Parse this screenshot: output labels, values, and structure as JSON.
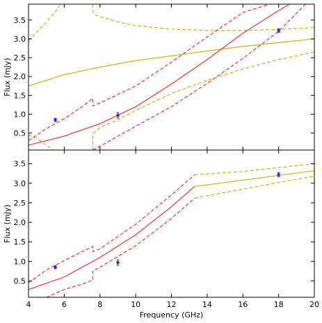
{
  "chart_data": {
    "type": "line",
    "xlabel": "Frequency (GHz)",
    "xlim": [
      4,
      20
    ],
    "xticks": [
      "4",
      "6",
      "8",
      "10",
      "12",
      "14",
      "16",
      "18",
      "20"
    ],
    "shared_x_axis": true,
    "grid": false,
    "legend": "none",
    "colors": {
      "model": "#ff2a2a",
      "model_alt": "#c8b400",
      "observed": "#1a2dff",
      "axes": "#000000"
    },
    "observations": [
      {
        "x": 5.5,
        "y": 0.85,
        "yerr": 0.04
      },
      {
        "x": 9.0,
        "y": 0.97,
        "yerr": 0.07
      },
      {
        "x": 18.0,
        "y": 3.22,
        "yerr": 0.05
      }
    ],
    "panels": [
      {
        "ylabel": "Flux (mJy)",
        "ylim": [
          0.05,
          3.92
        ],
        "yticks": [
          "0.5",
          "1.0",
          "1.5",
          "2.0",
          "2.5",
          "3.0",
          "3.5"
        ],
        "series": [
          {
            "color": "#c8b400",
            "style": "solid",
            "x": [
              4,
              6,
              8,
              10,
              12,
              14,
              16,
              18,
              20
            ],
            "y": [
              1.75,
              2.05,
              2.25,
              2.42,
              2.55,
              2.68,
              2.8,
              2.9,
              3.0
            ]
          },
          {
            "color": "#c8b400",
            "style": "dashed",
            "x": [
              4,
              4.5,
              5,
              5.5,
              5.8
            ],
            "y": [
              2.95,
              3.2,
              3.45,
              3.72,
              3.92
            ]
          },
          {
            "color": "#c8b400",
            "style": "dashed",
            "x": [
              7.6,
              7.6,
              7.8,
              9,
              10,
              12,
              14,
              16,
              18,
              20
            ],
            "y": [
              3.92,
              3.72,
              3.62,
              3.45,
              3.35,
              3.26,
              3.22,
              3.22,
              3.25,
              3.3
            ]
          },
          {
            "color": "#c8b400",
            "style": "dashed",
            "x": [
              4,
              4.5,
              5,
              5.4
            ],
            "y": [
              0.45,
              0.35,
              0.18,
              0.05
            ]
          },
          {
            "color": "#c8b400",
            "style": "dashed",
            "x": [
              7.6,
              7.6,
              8,
              9,
              10,
              12,
              14,
              16,
              18,
              20
            ],
            "y": [
              0.05,
              0.48,
              0.65,
              0.85,
              1.1,
              1.55,
              1.9,
              2.2,
              2.45,
              2.65
            ]
          },
          {
            "color": "#ff2a2a",
            "style": "solid",
            "x": [
              4,
              6,
              8,
              10,
              12,
              14,
              16,
              18,
              18.6
            ],
            "y": [
              0.18,
              0.42,
              0.75,
              1.2,
              1.8,
              2.45,
              3.15,
              3.75,
              3.92
            ]
          },
          {
            "color": "#ff2a2a",
            "style": "dashed",
            "x": [
              4,
              5,
              6,
              7,
              7.6,
              7.6,
              8,
              10,
              12,
              14,
              16,
              17.5
            ],
            "y": [
              0.3,
              0.62,
              0.88,
              1.2,
              1.42,
              1.22,
              1.3,
              1.75,
              2.38,
              3.05,
              3.7,
              3.92
            ]
          },
          {
            "color": "#ff2a2a",
            "style": "dashed",
            "x": [
              7.6,
              8,
              10,
              12,
              14,
              16,
              18,
              19.5
            ],
            "y": [
              0.05,
              0.15,
              0.68,
              1.2,
              1.82,
              2.48,
              3.2,
              3.92
            ]
          }
        ]
      },
      {
        "ylabel": "Flux (mJy)",
        "ylim": [
          0.08,
          3.85
        ],
        "yticks": [
          "0.5",
          "1.0",
          "1.5",
          "2.0",
          "2.5",
          "3.0",
          "3.5"
        ],
        "series": [
          {
            "color": "#ff2a2a",
            "style": "solid",
            "x": [
              4,
              6,
              8,
              10,
              12,
              13.3
            ],
            "y": [
              0.28,
              0.6,
              1.1,
              1.68,
              2.4,
              2.92
            ]
          },
          {
            "color": "#c8b400",
            "style": "solid",
            "x": [
              13.3,
              14,
              16,
              18,
              20
            ],
            "y": [
              2.92,
              2.96,
              3.08,
              3.2,
              3.32
            ]
          },
          {
            "color": "#ff2a2a",
            "style": "dashed",
            "x": [
              4,
              5,
              6,
              7,
              7.6,
              7.6,
              8,
              10,
              12,
              13.3
            ],
            "y": [
              0.45,
              0.78,
              1.02,
              1.25,
              1.38,
              1.25,
              1.32,
              1.95,
              2.7,
              3.22
            ]
          },
          {
            "color": "#c8b400",
            "style": "dashed",
            "x": [
              13.3,
              16,
              18,
              20
            ],
            "y": [
              3.22,
              3.3,
              3.4,
              3.5
            ]
          },
          {
            "color": "#ff2a2a",
            "style": "dashed",
            "x": [
              5.0,
              6,
              7,
              7.6,
              7.6,
              8,
              10,
              12,
              13.3
            ],
            "y": [
              0.08,
              0.28,
              0.42,
              0.52,
              0.75,
              0.85,
              1.4,
              2.1,
              2.62
            ]
          },
          {
            "color": "#c8b400",
            "style": "dashed",
            "x": [
              13.3,
              16,
              18,
              20
            ],
            "y": [
              2.62,
              2.85,
              3.02,
              3.18
            ]
          }
        ]
      }
    ]
  }
}
